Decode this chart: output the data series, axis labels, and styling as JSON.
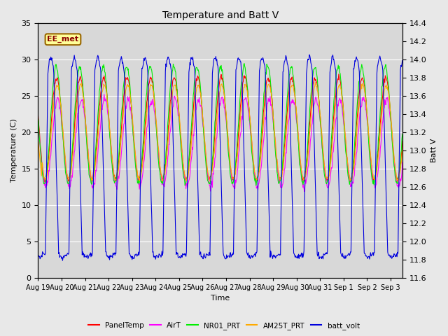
{
  "title": "Temperature and Batt V",
  "xlabel": "Time",
  "ylabel_left": "Temperature (C)",
  "ylabel_right": "Batt V",
  "annotation": "EE_met",
  "ylim_left": [
    0,
    35
  ],
  "ylim_right": [
    11.6,
    14.4
  ],
  "colors": {
    "PanelTemp": "#ff0000",
    "AirT": "#ff00ff",
    "NR01_PRT": "#00ee00",
    "AM25T_PRT": "#ffaa00",
    "batt_volt": "#0000dd"
  },
  "legend_labels": [
    "PanelTemp",
    "AirT",
    "NR01_PRT",
    "AM25T_PRT",
    "batt_volt"
  ],
  "bg_color": "#e8e8e8",
  "plot_bg_color": "#d8d8d8",
  "grid_color": "#ffffff",
  "annotation_bg": "#ffff99",
  "annotation_border": "#996600"
}
